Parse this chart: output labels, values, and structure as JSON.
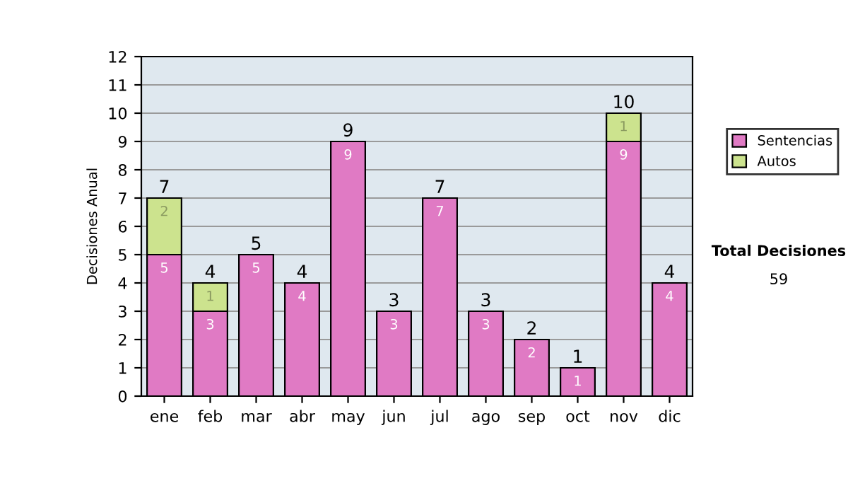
{
  "chart_data": {
    "type": "bar",
    "ylabel": "Decisiones Anual",
    "categories": [
      "ene",
      "feb",
      "mar",
      "abr",
      "may",
      "jun",
      "jul",
      "ago",
      "sep",
      "oct",
      "nov",
      "dic"
    ],
    "series": [
      {
        "name": "Sentencias",
        "color": "#e07ac4",
        "values": [
          5,
          3,
          5,
          4,
          9,
          3,
          7,
          3,
          2,
          1,
          9,
          4
        ]
      },
      {
        "name": "Autos",
        "color": "#cce38e",
        "values": [
          2,
          1,
          null,
          null,
          null,
          null,
          null,
          null,
          null,
          null,
          1,
          null
        ]
      }
    ],
    "stacked": true,
    "data_labels": true,
    "totals": [
      "7",
      "4",
      "5",
      "4",
      "9",
      "3",
      "7",
      "3",
      "2",
      "1",
      "10",
      "4"
    ],
    "ylim": [
      0,
      12
    ],
    "yticks": [
      0,
      1,
      2,
      3,
      4,
      5,
      6,
      7,
      8,
      9,
      10,
      11,
      12
    ],
    "grid": "y",
    "legend": "right",
    "annotations": [
      "Total Decisiones",
      "59"
    ]
  }
}
